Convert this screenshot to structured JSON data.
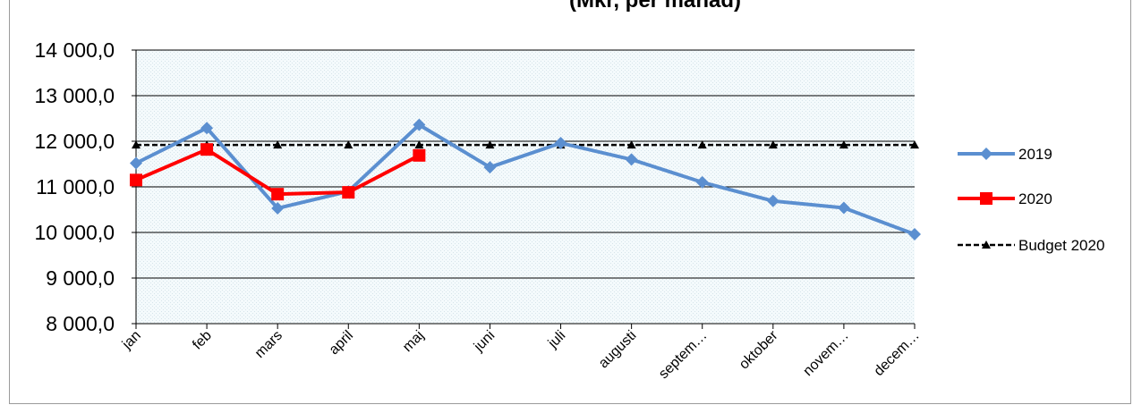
{
  "chart_data": {
    "type": "line",
    "title": "(Mkr, per månad)",
    "categories": [
      "jan",
      "feb",
      "mars",
      "april",
      "maj",
      "juni",
      "juli",
      "augusti",
      "septem…",
      "oktober",
      "novem…",
      "decem…"
    ],
    "ylim": [
      8000,
      14000
    ],
    "yticks": [
      8000,
      9000,
      10000,
      11000,
      12000,
      13000,
      14000
    ],
    "ytick_labels": [
      "8 000,0",
      "9 000,0",
      "10 000,0",
      "11 000,0",
      "12 000,0",
      "13 000,0",
      "14 000,0"
    ],
    "grid": true,
    "legend_position": "right",
    "series": [
      {
        "name": "2019",
        "color": "#5b8fd0",
        "marker": "diamond",
        "dash": "solid",
        "values": [
          11520,
          12290,
          10530,
          10900,
          12360,
          11430,
          11960,
          11600,
          11100,
          10690,
          10540,
          9960
        ]
      },
      {
        "name": "2020",
        "color": "#ff0000",
        "marker": "square",
        "dash": "solid",
        "values": [
          11150,
          11820,
          10840,
          10880,
          11690,
          null,
          null,
          null,
          null,
          null,
          null,
          null
        ]
      },
      {
        "name": "Budget 2020",
        "color": "#000000",
        "marker": "triangle",
        "dash": "dashed",
        "values": [
          11920,
          11920,
          11920,
          11920,
          11920,
          11920,
          11920,
          11920,
          11920,
          11920,
          11920,
          11920
        ]
      }
    ]
  }
}
